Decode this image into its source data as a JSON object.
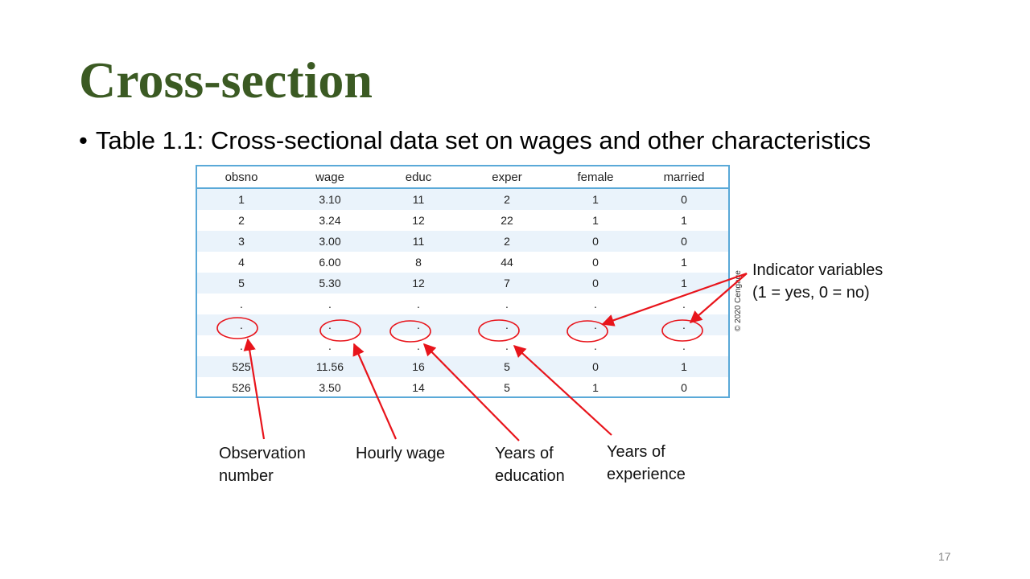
{
  "slide": {
    "title": "Cross-section",
    "bullet": "Table 1.1: Cross-sectional data set on wages and other characteristics",
    "page_number": "17",
    "copyright": "© 2020 Cengage"
  },
  "table": {
    "headers": [
      "obsno",
      "wage",
      "educ",
      "exper",
      "female",
      "married"
    ],
    "rows": [
      [
        "1",
        "3.10",
        "11",
        "2",
        "1",
        "0"
      ],
      [
        "2",
        "3.24",
        "12",
        "22",
        "1",
        "1"
      ],
      [
        "3",
        "3.00",
        "11",
        "2",
        "0",
        "0"
      ],
      [
        "4",
        "6.00",
        "8",
        "44",
        "0",
        "1"
      ],
      [
        "5",
        "5.30",
        "12",
        "7",
        "0",
        "1"
      ],
      [
        ".",
        ".",
        ".",
        ".",
        ".",
        "."
      ],
      [
        ".",
        ".",
        ".",
        ".",
        ".",
        "."
      ],
      [
        ".",
        ".",
        ".",
        ".",
        ".",
        "."
      ],
      [
        "525",
        "11.56",
        "16",
        "5",
        "0",
        "1"
      ],
      [
        "526",
        "3.50",
        "14",
        "5",
        "1",
        "0"
      ]
    ]
  },
  "annotations": {
    "indicator_line1": "Indicator variables",
    "indicator_line2": "(1 = yes, 0 = no)",
    "obs_line1": "Observation",
    "obs_line2": "number",
    "wage_label": "Hourly wage",
    "educ_line1": "Years of",
    "educ_line2": "education",
    "exper_line1": "Years of",
    "exper_line2": "experience"
  },
  "colors": {
    "title": "#3b5a23",
    "table_border": "#5aa9d8",
    "row_shade": "#eaf3fb",
    "annotation": "#e8141b"
  }
}
